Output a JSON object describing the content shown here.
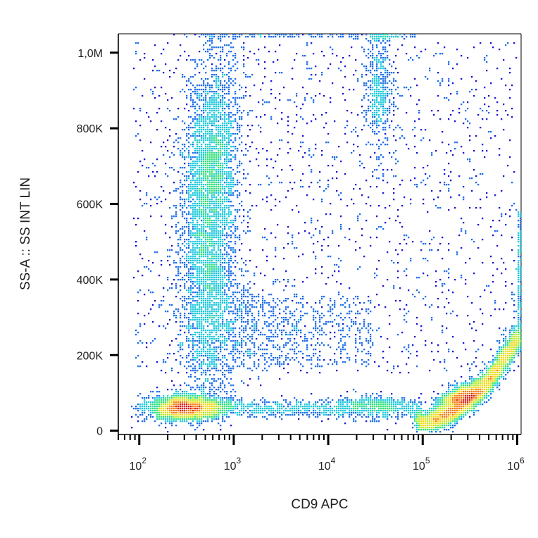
{
  "chart_data": {
    "type": "scatter",
    "subtype": "flow-cytometry-density-plot",
    "xlabel": "CD9 APC",
    "ylabel": "SS-A :: SS INT LIN",
    "x_scale": "log",
    "y_scale": "linear",
    "xlim": [
      60,
      1100000
    ],
    "ylim": [
      -10000,
      1050000
    ],
    "grid": false,
    "x_ticks": [
      {
        "value": 100,
        "base": "10",
        "exp": "2"
      },
      {
        "value": 1000,
        "base": "10",
        "exp": "3"
      },
      {
        "value": 10000,
        "base": "10",
        "exp": "4"
      },
      {
        "value": 100000,
        "base": "10",
        "exp": "5"
      },
      {
        "value": 1000000,
        "base": "10",
        "exp": "6"
      }
    ],
    "y_ticks": [
      {
        "value": 0,
        "label": "0"
      },
      {
        "value": 200000,
        "label": "200K"
      },
      {
        "value": 400000,
        "label": "400K"
      },
      {
        "value": 600000,
        "label": "600K"
      },
      {
        "value": 800000,
        "label": "800K"
      },
      {
        "value": 1000000,
        "label": "1,0M"
      }
    ],
    "density_colors": [
      "#1a1ad2",
      "#1f6ee6",
      "#1ec8dc",
      "#33e07a",
      "#b4ec2a",
      "#f7d81c",
      "#f57c14",
      "#dc1a14"
    ],
    "populations": [
      {
        "x_center": 316,
        "y_center": 60000,
        "relative_density": 1.0
      },
      {
        "x_center": 560,
        "y_center": 660000,
        "relative_density": 0.6
      },
      {
        "x_center": 560,
        "y_center": 300000,
        "relative_density": 0.25
      },
      {
        "x_center": 250000,
        "y_center": 90000,
        "relative_density": 1.0
      },
      {
        "x_center": 30000,
        "y_center": 55000,
        "relative_density": 0.2
      },
      {
        "x_center": 35000,
        "y_center": 900000,
        "relative_density": 0.15
      },
      {
        "x_center": 20000,
        "y_center": 500000,
        "relative_density": 0.05
      }
    ]
  }
}
